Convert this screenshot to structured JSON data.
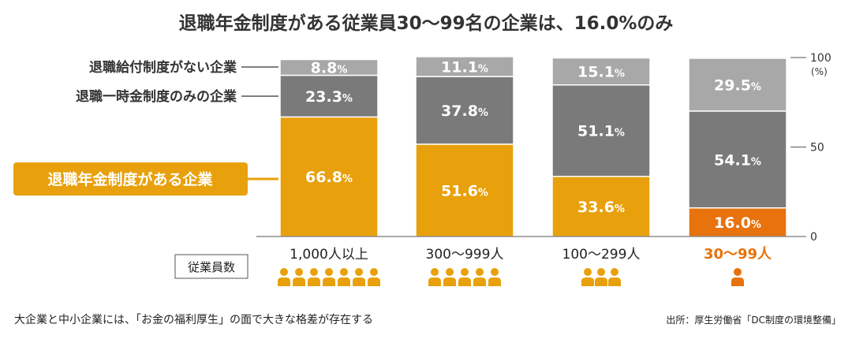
{
  "chart_data": {
    "type": "bar",
    "stacked": true,
    "title": "退職年金制度がある従業員30～99名の企業は、16.0%のみ",
    "categories": [
      "1,000人以上",
      "300～999人",
      "100～299人",
      "30～99人"
    ],
    "highlight_category": "30～99人",
    "series": [
      {
        "name": "退職年金制度がある企業",
        "values": [
          66.8,
          51.6,
          33.6,
          16.0
        ]
      },
      {
        "name": "退職一時金制度のみの企業",
        "values": [
          23.3,
          37.8,
          51.1,
          54.1
        ]
      },
      {
        "name": "退職給付制度がない企業",
        "values": [
          8.8,
          11.1,
          15.1,
          29.5
        ]
      }
    ],
    "ylim": [
      0,
      100
    ],
    "yticks": [
      "100",
      "50",
      "0"
    ],
    "yunit": "(%)",
    "legend_placement": "left",
    "grid": false
  },
  "colors": {
    "annuity": "#e8a10c",
    "lump_sum": "#7a7a7a",
    "none": "#a8a8a8",
    "highlight": "#e8720c",
    "text": "#333333"
  },
  "employee_label": "従業員数",
  "employee_icon_counts": [
    7,
    5,
    3,
    1
  ],
  "employee_icon": "person-icon",
  "footnote": "大企業と中小企業には、「お金の福利厚生」の面で大きな格差が存在する",
  "source": "出所：厚生労働省「DC制度の環境整備」"
}
